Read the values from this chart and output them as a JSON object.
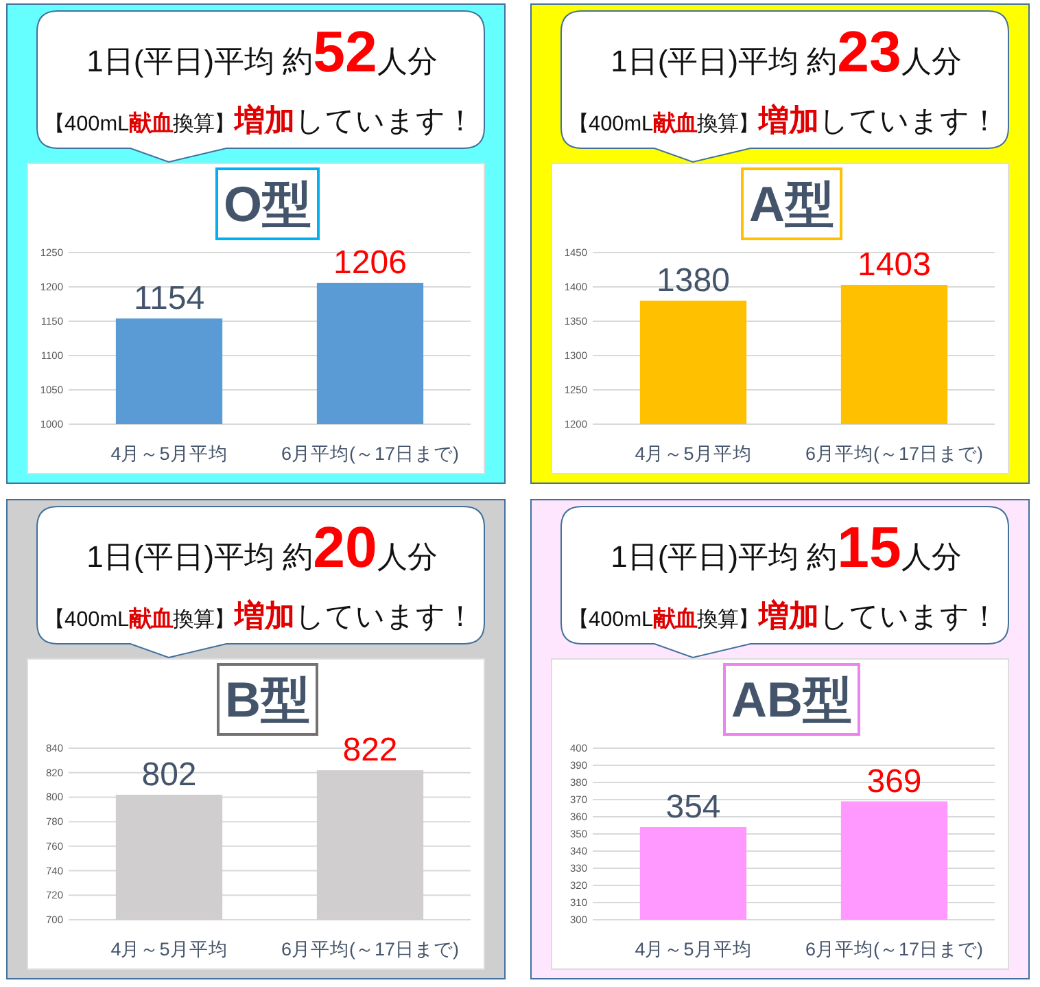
{
  "chart_data": [
    {
      "type": "bar",
      "title": "O型",
      "categories": [
        "4月～5月平均",
        "6月平均(～17日まで)"
      ],
      "values": [
        1154,
        1206
      ],
      "color": "#5b9bd5",
      "ylim": [
        1000,
        1250
      ],
      "yticks": [
        1000,
        1050,
        1100,
        1150,
        1200,
        1250
      ],
      "grid": "y",
      "data_labels": true,
      "annotations": [
        "1日(平日)平均 約",
        "52",
        "人分",
        "【400mL",
        "献血",
        "換算】",
        "増加",
        "しています！"
      ]
    },
    {
      "type": "bar",
      "title": "A型",
      "categories": [
        "4月～5月平均",
        "6月平均(～17日まで)"
      ],
      "values": [
        1380,
        1403
      ],
      "color": "#ffc000",
      "ylim": [
        1200,
        1450
      ],
      "yticks": [
        1200,
        1250,
        1300,
        1350,
        1400,
        1450
      ],
      "grid": "y",
      "data_labels": true,
      "annotations": [
        "1日(平日)平均 約",
        "23",
        "人分",
        "【400mL",
        "献血",
        "換算】",
        "増加",
        "しています！"
      ]
    },
    {
      "type": "bar",
      "title": "B型",
      "categories": [
        "4月～5月平均",
        "6月平均(～17日まで)"
      ],
      "values": [
        802,
        822
      ],
      "color": "#d0cece",
      "ylim": [
        700,
        840
      ],
      "yticks": [
        700,
        720,
        740,
        760,
        780,
        800,
        820,
        840
      ],
      "grid": "y",
      "data_labels": true,
      "annotations": [
        "1日(平日)平均 約",
        "20",
        "人分",
        "【400mL",
        "献血",
        "換算】",
        "増加",
        "しています！"
      ]
    },
    {
      "type": "bar",
      "title": "AB型",
      "categories": [
        "4月～5月平均",
        "6月平均(～17日まで)"
      ],
      "values": [
        354,
        369
      ],
      "color": "#ff99ff",
      "ylim": [
        300,
        400
      ],
      "yticks": [
        300,
        310,
        320,
        330,
        340,
        350,
        360,
        370,
        380,
        390,
        400
      ],
      "grid": "y",
      "data_labels": true,
      "annotations": [
        "1日(平日)平均 約",
        "15",
        "人分",
        "【400mL",
        "献血",
        "換算】",
        "増加",
        "しています！"
      ]
    }
  ]
}
